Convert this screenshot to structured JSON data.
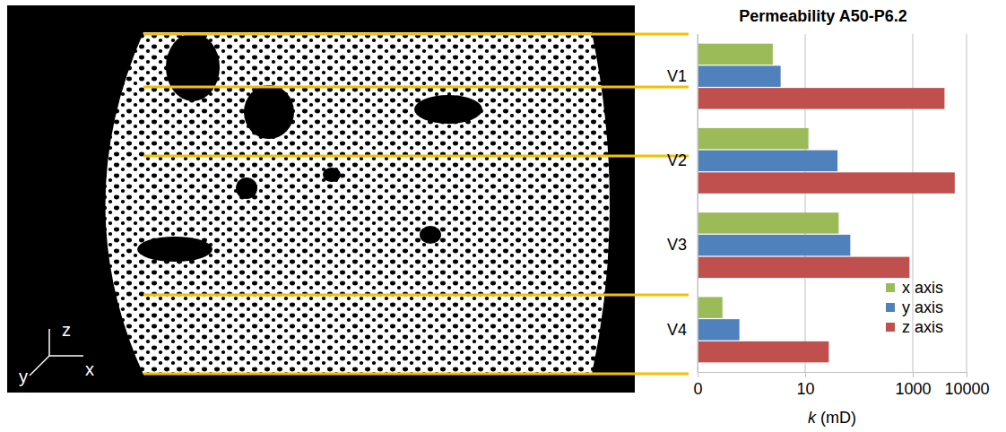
{
  "chart_data": {
    "type": "bar",
    "orientation": "horizontal",
    "title": "Permeability A50-P6.2",
    "x_label": "k (mD)",
    "categories": [
      "V1",
      "V2",
      "V3",
      "V4"
    ],
    "series": [
      {
        "name": "x axis",
        "color": "#9bbb59",
        "values": [
          2.5,
          11.5,
          42,
          0.29
        ]
      },
      {
        "name": "y axis",
        "color": "#4f81bd",
        "values": [
          3.5,
          40,
          69,
          0.6
        ]
      },
      {
        "name": "z axis",
        "color": "#c0504d",
        "values": [
          3890,
          6030,
          870,
          27.5
        ]
      }
    ],
    "log": "x",
    "xlim": [
      0.1,
      10000
    ],
    "xticks": [
      {
        "value": 0.1,
        "label": "0"
      },
      10,
      1000,
      10000
    ],
    "grid": true,
    "legend": "lower right",
    "annotations": [
      "z",
      "y",
      "x"
    ]
  }
}
